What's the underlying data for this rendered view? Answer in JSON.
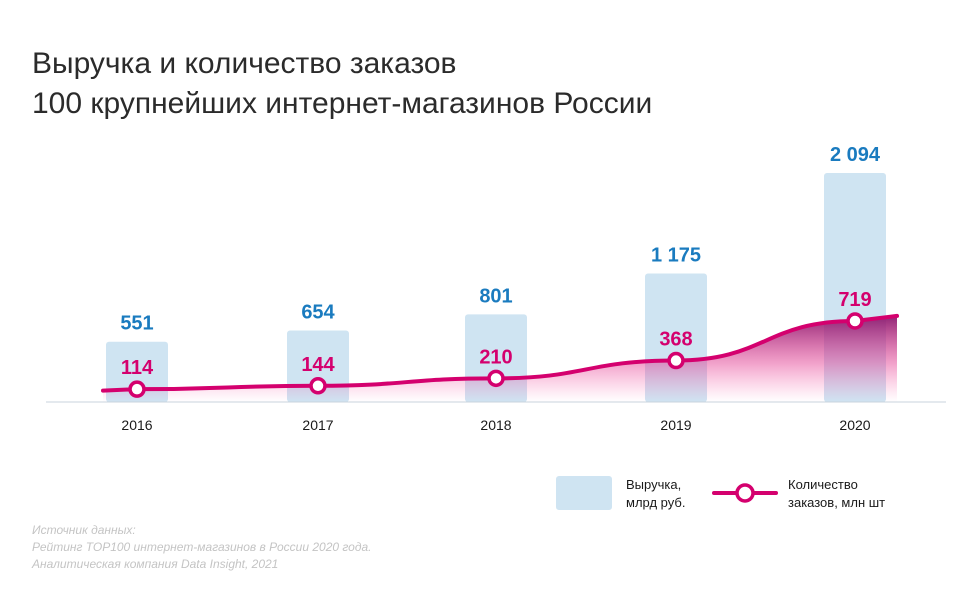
{
  "title": {
    "line1": "Выручка и количество заказов",
    "line2": "100 крупнейших интернет-магазинов России"
  },
  "chart_data": {
    "type": "bar",
    "categories": [
      "2016",
      "2017",
      "2018",
      "2019",
      "2020"
    ],
    "series": [
      {
        "name": "Выручка, млрд руб.",
        "type": "bar",
        "values": [
          551,
          654,
          801,
          1175,
          2094
        ],
        "labels": [
          "551",
          "654",
          "801",
          "1 175",
          "2 094"
        ],
        "color": "#cfe4f2",
        "label_color": "#1a7bbf"
      },
      {
        "name": "Количество заказов, млн шт",
        "type": "line",
        "values": [
          114,
          144,
          210,
          368,
          719
        ],
        "labels": [
          "114",
          "144",
          "210",
          "368",
          "719"
        ],
        "color": "#d4006e",
        "label_color": "#d4006e"
      }
    ]
  },
  "legend": {
    "revenue_line1": "Выручка,",
    "revenue_line2": "млрд руб.",
    "orders_line1": "Количество",
    "orders_line2": "заказов, млн шт"
  },
  "source": {
    "line1": "Источник данных:",
    "line2": "Рейтинг TOP100 интернет-магазинов в России 2020 года.",
    "line3": "Аналитическая компания Data Insight, 2021"
  }
}
